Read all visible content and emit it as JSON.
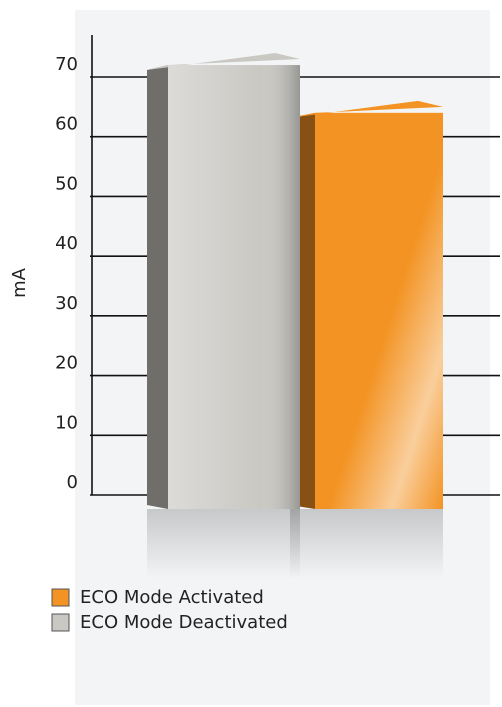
{
  "chart_data": {
    "type": "bar3d",
    "y_label": "mA",
    "categories": [
      null
    ],
    "series": [
      {
        "name": "ECO Mode Activated",
        "color": "#f39323",
        "values": [
          64
        ]
      },
      {
        "name": "ECO Mode Deactivated",
        "color": "#c9c8c3",
        "values": [
          72
        ]
      }
    ],
    "ylim": [
      0,
      70
    ],
    "yticks": [
      0,
      10,
      20,
      30,
      40,
      50,
      60,
      70
    ],
    "grid": true
  }
}
